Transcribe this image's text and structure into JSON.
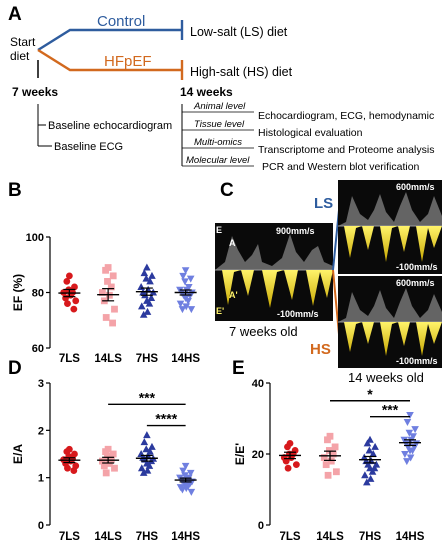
{
  "panels": {
    "A": "A",
    "B": "B",
    "C": "C",
    "D": "D",
    "E": "E"
  },
  "schematic": {
    "start_label_1": "Start",
    "start_label_2": "diet",
    "control_label": "Control",
    "hfpef_label": "HFpEF",
    "ls_diet": "Low-salt (LS) diet",
    "hs_diet": "High-salt (HS) diet",
    "week7": "7 weeks",
    "week14": "14 weeks",
    "baseline_echo": "Baseline echocardiogram",
    "baseline_ecg": "Baseline ECG",
    "levels": [
      {
        "level": "Animal level",
        "desc": "Echocardiogram, ECG, hemodynamic"
      },
      {
        "level": "Tissue level",
        "desc": "Histological evaluation"
      },
      {
        "level": "Multi-omics",
        "desc": "Transcriptome and Proteome analysis"
      },
      {
        "level": "Molecular level",
        "desc": "PCR and Western blot verification"
      }
    ],
    "colors": {
      "control": "#2e5c9e",
      "hfpef": "#d2691e"
    }
  },
  "echo": {
    "speed_7w": "900mm/s",
    "speed_14w": "600mm/s",
    "neg_speed": "-100mm/s",
    "wave_A": "A",
    "wave_E": "E",
    "wave_A_prime": "A'",
    "wave_E_prime": "E'",
    "label_7w": "7 weeks old",
    "label_14w": "14 weeks old",
    "LS": "LS",
    "HS": "HS"
  },
  "chart_data": [
    {
      "panel": "B",
      "type": "scatter",
      "ylabel": "EF (%)",
      "categories": [
        "7LS",
        "14LS",
        "7HS",
        "14HS"
      ],
      "ylim": [
        60,
        100
      ],
      "yticks": [
        60,
        80,
        100
      ],
      "groups": [
        {
          "name": "7LS",
          "marker": "circle",
          "color": "#d7191c",
          "mean": 79.8,
          "sem": 1.3,
          "values": [
            86,
            84,
            82,
            81,
            80,
            80,
            79,
            78,
            77,
            76,
            74
          ]
        },
        {
          "name": "14LS",
          "marker": "square",
          "color": "#f4a3a8",
          "mean": 79.2,
          "sem": 2.2,
          "values": [
            89,
            88,
            86,
            84,
            82,
            80,
            79,
            77,
            74,
            71,
            69
          ]
        },
        {
          "name": "7HS",
          "marker": "triangle-up",
          "color": "#2b3a9e",
          "mean": 80.3,
          "sem": 1.3,
          "values": [
            89,
            87,
            86,
            85,
            84,
            82,
            81,
            80,
            80,
            79,
            78,
            77,
            76,
            75,
            73,
            72
          ]
        },
        {
          "name": "14HS",
          "marker": "triangle-down",
          "color": "#6f7fe0",
          "mean": 80.0,
          "sem": 0.9,
          "values": [
            88,
            86,
            85,
            84,
            82,
            81,
            81,
            80,
            80,
            79,
            79,
            78,
            77,
            76,
            75,
            74,
            74
          ]
        }
      ],
      "annotations": []
    },
    {
      "panel": "D",
      "type": "scatter",
      "ylabel": "E/A",
      "categories": [
        "7LS",
        "14LS",
        "7HS",
        "14HS"
      ],
      "ylim": [
        0,
        3
      ],
      "yticks": [
        0,
        1,
        2,
        3
      ],
      "groups": [
        {
          "name": "7LS",
          "marker": "circle",
          "color": "#d7191c",
          "mean": 1.37,
          "sem": 0.05,
          "values": [
            1.6,
            1.55,
            1.5,
            1.45,
            1.4,
            1.38,
            1.35,
            1.3,
            1.25,
            1.2,
            1.15
          ]
        },
        {
          "name": "14LS",
          "marker": "square",
          "color": "#f4a3a8",
          "mean": 1.37,
          "sem": 0.06,
          "values": [
            1.6,
            1.55,
            1.5,
            1.45,
            1.38,
            1.35,
            1.3,
            1.25,
            1.2,
            1.1
          ]
        },
        {
          "name": "7HS",
          "marker": "triangle-up",
          "color": "#2b3a9e",
          "mean": 1.41,
          "sem": 0.06,
          "values": [
            1.9,
            1.75,
            1.65,
            1.6,
            1.55,
            1.5,
            1.45,
            1.42,
            1.4,
            1.38,
            1.35,
            1.3,
            1.25,
            1.2,
            1.15,
            1.1
          ]
        },
        {
          "name": "14HS",
          "marker": "triangle-down",
          "color": "#6f7fe0",
          "mean": 0.95,
          "sem": 0.04,
          "values": [
            1.25,
            1.15,
            1.1,
            1.05,
            1.0,
            1.0,
            0.98,
            0.95,
            0.92,
            0.9,
            0.88,
            0.85,
            0.82,
            0.8,
            0.78,
            0.75,
            0.7
          ]
        }
      ],
      "annotations": [
        {
          "label": "***",
          "from": "14LS",
          "to": "14HS",
          "y": 2.55
        },
        {
          "label": "****",
          "from": "7HS",
          "to": "14HS",
          "y": 2.1
        }
      ]
    },
    {
      "panel": "E",
      "type": "scatter",
      "ylabel": "E/E'",
      "categories": [
        "7LS",
        "14LS",
        "7HS",
        "14HS"
      ],
      "ylim": [
        0,
        40
      ],
      "yticks": [
        0,
        20,
        40
      ],
      "groups": [
        {
          "name": "7LS",
          "marker": "circle",
          "color": "#d7191c",
          "mean": 19.6,
          "sem": 0.9,
          "values": [
            23,
            22,
            21,
            20,
            20,
            19,
            19,
            18,
            17,
            16
          ]
        },
        {
          "name": "14LS",
          "marker": "square",
          "color": "#f4a3a8",
          "mean": 19.5,
          "sem": 1.3,
          "values": [
            25,
            24,
            22,
            21,
            20,
            19,
            18,
            17,
            15,
            14
          ]
        },
        {
          "name": "7HS",
          "marker": "triangle-up",
          "color": "#2b3a9e",
          "mean": 18.4,
          "sem": 0.9,
          "values": [
            24,
            23,
            22,
            21,
            20,
            19,
            18,
            18,
            17,
            17,
            16,
            16,
            15,
            14,
            13,
            12
          ]
        },
        {
          "name": "14HS",
          "marker": "triangle-down",
          "color": "#6f7fe0",
          "mean": 23.2,
          "sem": 0.8,
          "values": [
            31,
            29,
            27,
            26,
            25,
            24,
            24,
            23,
            23,
            22,
            22,
            21,
            21,
            20,
            19,
            18
          ]
        }
      ],
      "annotations": [
        {
          "label": "*",
          "from": "14LS",
          "to": "14HS",
          "y": 35
        },
        {
          "label": "***",
          "from": "7HS",
          "to": "14HS",
          "y": 30.5
        }
      ]
    }
  ]
}
